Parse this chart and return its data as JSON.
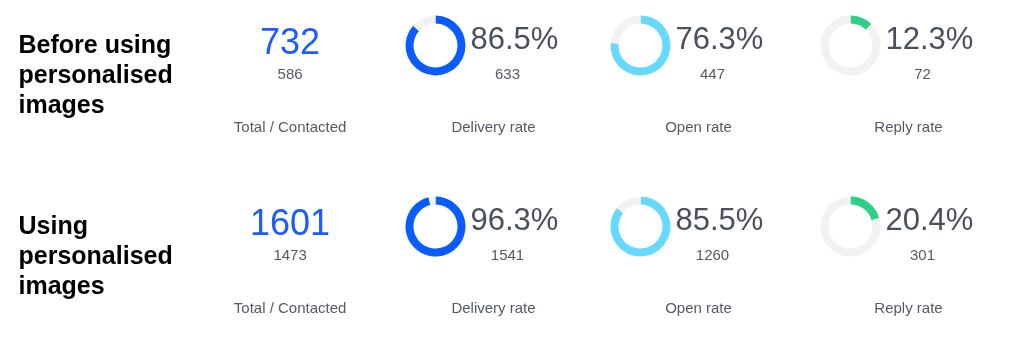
{
  "chart_data": [
    {
      "type": "other",
      "title": "Before using personalised images"
    },
    {
      "type": "other",
      "title": "Total / Contacted",
      "annotations": [
        "732",
        "586"
      ]
    },
    {
      "type": "donut",
      "title": "Delivery rate",
      "categories": [
        null,
        null
      ],
      "values": [
        86.5,
        13.5
      ],
      "colors": [
        "#0a5cff",
        "#f2f2f2"
      ],
      "value_labels": [
        "86.5%",
        null
      ],
      "annotations": [
        "633"
      ]
    },
    {
      "type": "donut",
      "title": "Open rate",
      "categories": [
        null,
        null
      ],
      "values": [
        76.3,
        23.7
      ],
      "colors": [
        "#66d9ff",
        "#f2f2f2"
      ],
      "value_labels": [
        "76.3%",
        null
      ],
      "annotations": [
        "447"
      ]
    },
    {
      "type": "donut",
      "title": "Reply rate",
      "categories": [
        null,
        null
      ],
      "values": [
        12.3,
        87.7
      ],
      "colors": [
        "#2ecf86",
        "#f2f2f2"
      ],
      "value_labels": [
        "12.3%",
        null
      ],
      "annotations": [
        "72"
      ]
    },
    {
      "type": "other",
      "title": "Using personalised images"
    },
    {
      "type": "other",
      "title": "Total / Contacted",
      "annotations": [
        "1601",
        "1473"
      ]
    },
    {
      "type": "donut",
      "title": "Delivery rate",
      "categories": [
        null,
        null
      ],
      "values": [
        96.3,
        3.7
      ],
      "colors": [
        "#0a5cff",
        "#f2f2f2"
      ],
      "value_labels": [
        "96.3%",
        null
      ],
      "annotations": [
        "1541"
      ]
    },
    {
      "type": "donut",
      "title": "Open rate",
      "categories": [
        null,
        null
      ],
      "values": [
        85.5,
        14.5
      ],
      "colors": [
        "#66d9ff",
        "#f2f2f2"
      ],
      "value_labels": [
        "85.5%",
        null
      ],
      "annotations": [
        "1260"
      ]
    },
    {
      "type": "donut",
      "title": "Reply rate",
      "categories": [
        null,
        null
      ],
      "values": [
        20.4,
        79.6
      ],
      "colors": [
        "#2ecf86",
        "#f2f2f2"
      ],
      "value_labels": [
        "20.4%",
        null
      ],
      "annotations": [
        "301"
      ]
    }
  ]
}
